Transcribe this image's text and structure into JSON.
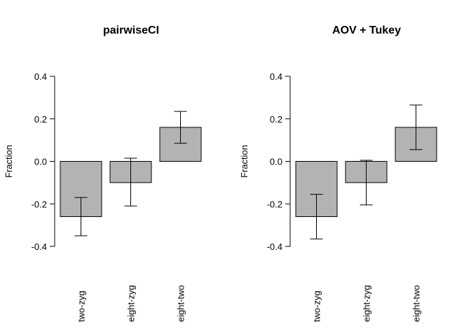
{
  "chart_data": [
    {
      "type": "bar",
      "title": "pairwiseCI",
      "ylabel": "Fraction",
      "xlabel": "",
      "categories": [
        "two-zyg",
        "eight-zyg",
        "eight-two"
      ],
      "values": [
        -0.26,
        -0.1,
        0.16
      ],
      "ci_lower": [
        -0.35,
        -0.21,
        0.085
      ],
      "ci_upper": [
        -0.17,
        0.015,
        0.235
      ],
      "ylim": [
        -0.4,
        0.4
      ],
      "yticks": [
        -0.4,
        -0.2,
        0.0,
        0.2,
        0.4
      ],
      "ytick_labels": [
        "-0.4",
        "-0.2",
        "0.0",
        "0.2",
        "0.4"
      ],
      "bar_color": "#b3b3b3",
      "grid": false
    },
    {
      "type": "bar",
      "title": "AOV + Tukey",
      "ylabel": "Fraction",
      "xlabel": "",
      "categories": [
        "two-zyg",
        "eight-zyg",
        "eight-two"
      ],
      "values": [
        -0.26,
        -0.1,
        0.16
      ],
      "ci_lower": [
        -0.365,
        -0.205,
        0.055
      ],
      "ci_upper": [
        -0.155,
        0.005,
        0.265
      ],
      "ylim": [
        -0.4,
        0.4
      ],
      "yticks": [
        -0.4,
        -0.2,
        0.0,
        0.2,
        0.4
      ],
      "ytick_labels": [
        "-0.4",
        "-0.2",
        "0.0",
        "0.2",
        "0.4"
      ],
      "bar_color": "#b3b3b3",
      "grid": false
    }
  ]
}
